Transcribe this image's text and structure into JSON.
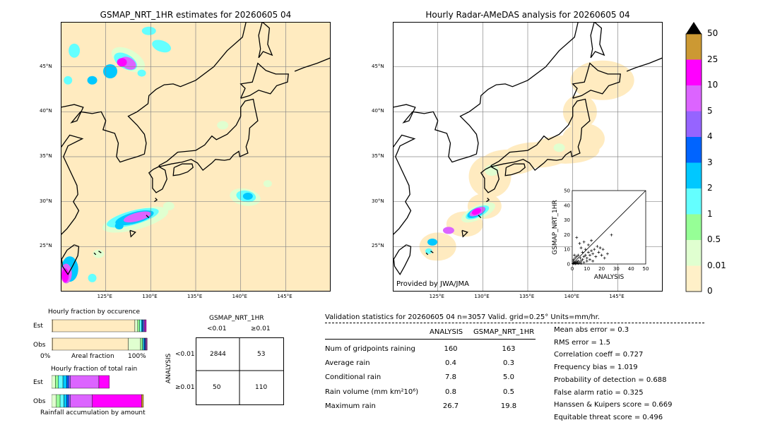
{
  "colors": {
    "land": "#ffebc0",
    "c001": "#fff0c8",
    "c05": "#e0ffd0",
    "c1": "#96ff96",
    "c2": "#64ffff",
    "c3": "#00c8ff",
    "c4": "#0064ff",
    "c5": "#9664ff",
    "c10": "#dc64ff",
    "c25": "#ff00ff",
    "c50": "#cc9933"
  },
  "left_map": {
    "title": "GSMAP_NRT_1HR estimates for 20260605 04",
    "lat_labels": [
      "45°N",
      "40°N",
      "35°N",
      "30°N",
      "25°N"
    ],
    "lon_labels": [
      "125°E",
      "130°E",
      "135°E",
      "140°E",
      "145°E"
    ]
  },
  "right_map": {
    "title": "Hourly Radar-AMeDAS analysis for 20260605 04",
    "lat_labels": [
      "45°N",
      "40°N",
      "35°N",
      "30°N",
      "25°N"
    ],
    "lon_labels": [
      "125°E",
      "130°E",
      "135°E",
      "140°E",
      "145°E"
    ],
    "credit": "Provided by JWA/JMA"
  },
  "colorbar": {
    "labels": [
      "50",
      "25",
      "10",
      "5",
      "4",
      "3",
      "2",
      "1",
      "0.5",
      "0.01",
      "0"
    ]
  },
  "chart_data": {
    "type": "scatter",
    "xlabel": "ANALYSIS",
    "ylabel": "GSMAP_NRT_1HR",
    "xlim": [
      0,
      50
    ],
    "ylim": [
      0,
      50
    ],
    "ticks": [
      "0",
      "10",
      "20",
      "30",
      "40",
      "50"
    ],
    "points": [
      [
        0.5,
        0.3
      ],
      [
        1,
        0.5
      ],
      [
        1.5,
        0.8
      ],
      [
        2,
        1
      ],
      [
        0.8,
        2
      ],
      [
        2.5,
        0.5
      ],
      [
        3,
        1.5
      ],
      [
        1,
        3
      ],
      [
        4,
        2
      ],
      [
        3.5,
        0.8
      ],
      [
        5,
        1
      ],
      [
        6,
        2
      ],
      [
        5.5,
        4
      ],
      [
        7,
        3
      ],
      [
        8,
        5
      ],
      [
        9,
        6
      ],
      [
        10,
        4
      ],
      [
        11,
        8
      ],
      [
        12,
        6
      ],
      [
        13,
        9
      ],
      [
        14,
        7
      ],
      [
        15,
        10
      ],
      [
        16,
        5
      ],
      [
        18,
        8
      ],
      [
        20,
        6
      ],
      [
        22,
        4
      ],
      [
        17,
        12
      ],
      [
        9,
        10
      ],
      [
        7,
        8
      ],
      [
        6,
        11
      ],
      [
        4,
        6
      ],
      [
        3,
        5
      ],
      [
        2,
        4
      ],
      [
        10,
        2
      ],
      [
        12,
        3
      ],
      [
        14,
        2
      ],
      [
        8,
        1
      ],
      [
        6,
        0.5
      ],
      [
        4,
        0.4
      ],
      [
        2,
        0.2
      ],
      [
        3,
        18
      ],
      [
        5,
        14
      ],
      [
        8,
        15
      ],
      [
        26.7,
        19.8
      ],
      [
        11,
        13
      ],
      [
        19,
        11
      ],
      [
        13,
        16
      ],
      [
        1.5,
        6
      ],
      [
        24,
        7
      ],
      [
        21,
        10
      ]
    ]
  },
  "fraction_occurrence": {
    "title": "Hourly fraction by occurence",
    "rows": [
      "Est",
      "Obs"
    ],
    "xaxis_left": "0%",
    "xaxis_mid": "Areal fraction",
    "xaxis_right": "100%",
    "est_segments": [
      [
        0.01,
        "c001"
      ],
      [
        0.87,
        "land"
      ],
      [
        0.03,
        "c05"
      ],
      [
        0.02,
        "c1"
      ],
      [
        0.02,
        "c2"
      ],
      [
        0.01,
        "c3"
      ],
      [
        0.01,
        "c4"
      ],
      [
        0.01,
        "c5"
      ],
      [
        0.01,
        "c10"
      ],
      [
        0.01,
        "c25"
      ]
    ],
    "obs_segments": [
      [
        0.01,
        "c001"
      ],
      [
        0.8,
        "land"
      ],
      [
        0.13,
        "c05"
      ],
      [
        0.02,
        "c1"
      ],
      [
        0.01,
        "c2"
      ],
      [
        0.01,
        "c3"
      ],
      [
        0.01,
        "c4"
      ],
      [
        0.005,
        "c5"
      ],
      [
        0.01,
        "c10"
      ],
      [
        0.005,
        "c25"
      ]
    ]
  },
  "fraction_total": {
    "title": "Hourly fraction of total rain",
    "rows": [
      "Est",
      "Obs"
    ],
    "footer": "Rainfall accumulation by amount",
    "est_segments": [
      [
        0.04,
        "c05"
      ],
      [
        0.03,
        "c1"
      ],
      [
        0.05,
        "c2"
      ],
      [
        0.04,
        "c3"
      ],
      [
        0.02,
        "c4"
      ],
      [
        0.02,
        "c5"
      ],
      [
        0.3,
        "c10"
      ],
      [
        0.11,
        "c25"
      ]
    ],
    "obs_segments": [
      [
        0.05,
        "c05"
      ],
      [
        0.04,
        "c1"
      ],
      [
        0.04,
        "c2"
      ],
      [
        0.03,
        "c3"
      ],
      [
        0.02,
        "c4"
      ],
      [
        0.02,
        "c5"
      ],
      [
        0.23,
        "c10"
      ],
      [
        0.52,
        "c25"
      ],
      [
        0.02,
        "c50"
      ]
    ]
  },
  "contingency": {
    "title": "GSMAP_NRT_1HR",
    "col_labels": [
      "<0.01",
      "≥0.01"
    ],
    "row_axis": "ANALYSIS",
    "row_labels": [
      "<0.01",
      "≥0.01"
    ],
    "cells": [
      [
        "2844",
        "53"
      ],
      [
        "50",
        "110"
      ]
    ]
  },
  "validation": {
    "header": "Validation statistics for 20260605 04  n=3057 Valid. grid=0.25° Units=mm/hr.",
    "col_analysis": "ANALYSIS",
    "col_gsmap": "GSMAP_NRT_1HR",
    "rows": [
      {
        "label": "Num of gridpoints raining",
        "analysis": "160",
        "gsmap": "163"
      },
      {
        "label": "Average rain",
        "analysis": "0.4",
        "gsmap": "0.3"
      },
      {
        "label": "Conditional rain",
        "analysis": "7.8",
        "gsmap": "5.0"
      },
      {
        "label": "Rain volume (mm km²10⁶)",
        "analysis": "0.8",
        "gsmap": "0.5"
      },
      {
        "label": "Maximum rain",
        "analysis": "26.7",
        "gsmap": "19.8"
      }
    ],
    "scores": [
      "Mean abs error =    0.3",
      "RMS error =    1.5",
      "Correlation coeff =  0.727",
      "Frequency bias =  1.019",
      "Probability of detection =  0.688",
      "False alarm ratio =  0.325",
      "Hanssen & Kuipers score =  0.669",
      "Equitable threat score =  0.496"
    ]
  }
}
